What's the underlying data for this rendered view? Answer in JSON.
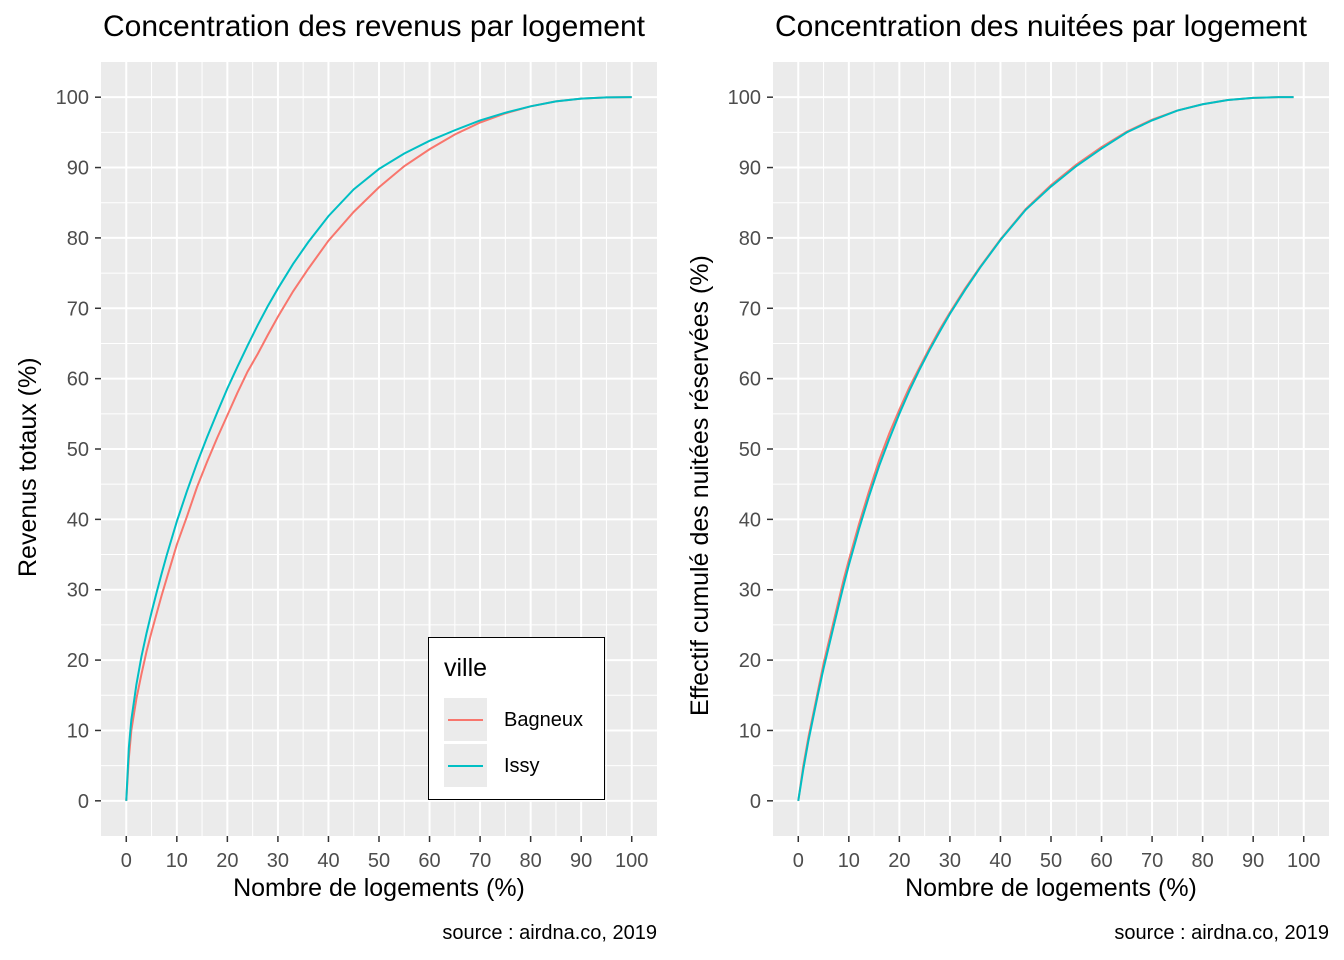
{
  "legend": {
    "title": "ville",
    "items": [
      {
        "label": "Bagneux",
        "color": "#F8766D"
      },
      {
        "label": "Issy",
        "color": "#00BFC4"
      }
    ]
  },
  "chart_data": [
    {
      "type": "line",
      "title": "Concentration des revenus par logement",
      "xlabel": "Nombre de logements (%)",
      "ylabel": "Revenus totaux (%)",
      "caption": "source : airdna.co, 2019",
      "xlim": [
        -5,
        105
      ],
      "ylim": [
        -5,
        105
      ],
      "x_ticks": [
        0,
        10,
        20,
        30,
        40,
        50,
        60,
        70,
        80,
        90,
        100
      ],
      "y_ticks": [
        0,
        10,
        20,
        30,
        40,
        50,
        60,
        70,
        80,
        90,
        100
      ],
      "grid": true,
      "legend_position": "bottom-right",
      "series": [
        {
          "name": "Bagneux",
          "color": "#F8766D",
          "x": [
            0,
            0.5,
            1,
            2,
            3,
            4,
            5,
            6,
            7,
            8,
            9,
            10,
            12,
            14,
            16,
            18,
            20,
            22,
            24,
            26,
            28,
            30,
            33,
            36,
            40,
            45,
            50,
            55,
            60,
            65,
            70,
            75,
            80,
            85,
            90,
            95,
            100
          ],
          "y": [
            0,
            6,
            10,
            14.5,
            18,
            21.2,
            24,
            26.6,
            29.2,
            31.6,
            34,
            36.4,
            40.4,
            44.6,
            48.2,
            51.6,
            54.8,
            58,
            61,
            63.5,
            66.2,
            68.8,
            72.4,
            75.6,
            79.6,
            83.7,
            87.2,
            90.2,
            92.6,
            94.7,
            96.4,
            97.7,
            98.7,
            99.4,
            99.8,
            99.97,
            100
          ]
        },
        {
          "name": "Issy",
          "color": "#00BFC4",
          "x": [
            0,
            0.5,
            1,
            2,
            3,
            4,
            5,
            6,
            7,
            8,
            9,
            10,
            12,
            14,
            16,
            18,
            20,
            22,
            24,
            26,
            28,
            30,
            33,
            36,
            40,
            45,
            50,
            55,
            60,
            65,
            70,
            75,
            80,
            85,
            90,
            95,
            100
          ],
          "y": [
            0,
            7.5,
            11.5,
            16.5,
            20.5,
            23.8,
            26.8,
            29.6,
            32.3,
            34.9,
            37.3,
            39.7,
            44,
            48,
            51.7,
            55.2,
            58.6,
            61.7,
            64.7,
            67.6,
            70.3,
            72.8,
            76.3,
            79.4,
            83.1,
            86.9,
            89.8,
            92,
            93.8,
            95.3,
            96.7,
            97.8,
            98.7,
            99.4,
            99.8,
            99.97,
            100
          ]
        }
      ]
    },
    {
      "type": "line",
      "title": "Concentration des nuitées par logement",
      "xlabel": "Nombre de logements (%)",
      "ylabel": "Effectif cumulé des nuitées réservées (%)",
      "caption": "source : airdna.co, 2019",
      "xlim": [
        -5,
        105
      ],
      "ylim": [
        -5,
        105
      ],
      "x_ticks": [
        0,
        10,
        20,
        30,
        40,
        50,
        60,
        70,
        80,
        90,
        100
      ],
      "y_ticks": [
        0,
        10,
        20,
        30,
        40,
        50,
        60,
        70,
        80,
        90,
        100
      ],
      "grid": true,
      "series": [
        {
          "name": "Bagneux",
          "color": "#F8766D",
          "x": [
            0,
            1,
            2,
            3,
            4,
            5,
            6,
            7,
            8,
            9,
            10,
            12,
            14,
            16,
            18,
            20,
            22,
            24,
            26,
            28,
            30,
            33,
            36,
            40,
            45,
            50,
            55,
            60,
            65,
            70,
            75,
            80,
            85,
            90,
            95,
            98
          ],
          "y": [
            0,
            5,
            9,
            12.5,
            16,
            19.5,
            22.5,
            25.5,
            28.5,
            31.5,
            34.2,
            39.3,
            44,
            48.4,
            52.2,
            55.6,
            58.8,
            61.6,
            64.4,
            67,
            69.4,
            72.8,
            75.9,
            79.8,
            84.1,
            87.5,
            90.4,
            92.9,
            95.1,
            96.8,
            98.1,
            99,
            99.6,
            99.9,
            100,
            100
          ]
        },
        {
          "name": "Issy",
          "color": "#00BFC4",
          "x": [
            0,
            1,
            2,
            3,
            4,
            5,
            6,
            7,
            8,
            9,
            10,
            12,
            14,
            16,
            18,
            20,
            22,
            24,
            26,
            28,
            30,
            33,
            36,
            40,
            45,
            50,
            55,
            60,
            65,
            70,
            75,
            80,
            85,
            90,
            95,
            98
          ],
          "y": [
            0,
            4.5,
            8.5,
            12,
            15.5,
            18.8,
            21.8,
            24.8,
            27.8,
            30.7,
            33.5,
            38.6,
            43.3,
            47.6,
            51.4,
            55,
            58.3,
            61.3,
            64.1,
            66.7,
            69.2,
            72.6,
            75.8,
            79.7,
            84,
            87.3,
            90.2,
            92.7,
            95,
            96.7,
            98.1,
            99,
            99.6,
            99.9,
            100,
            100
          ]
        }
      ]
    }
  ]
}
